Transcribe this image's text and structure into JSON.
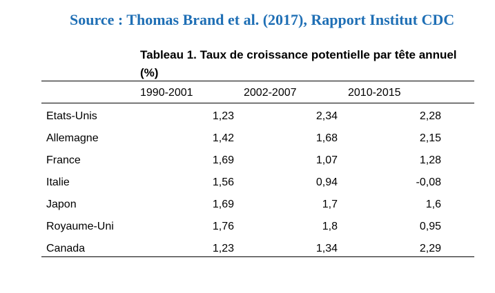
{
  "source": "Source : Thomas Brand et al. (2017), Rapport Institut CDC",
  "table": {
    "title": "Tableau 1. Taux de croissance potentielle par tête annuel (%)",
    "columns": [
      "1990-2001",
      "2002-2007",
      "2010-2015"
    ],
    "rows": [
      {
        "country": "Etats-Unis",
        "values": [
          "1,23",
          "2,34",
          "2,28"
        ]
      },
      {
        "country": "Allemagne",
        "values": [
          "1,42",
          "1,68",
          "2,15"
        ]
      },
      {
        "country": "France",
        "values": [
          "1,69",
          "1,07",
          "1,28"
        ]
      },
      {
        "country": "Italie",
        "values": [
          "1,56",
          "0,94",
          "-0,08"
        ]
      },
      {
        "country": "Japon",
        "values": [
          "1,69",
          "1,7",
          "1,6"
        ]
      },
      {
        "country": "Royaume-Uni",
        "values": [
          "1,76",
          "1,8",
          "0,95"
        ]
      },
      {
        "country": "Canada",
        "values": [
          "1,23",
          "1,34",
          "2,29"
        ]
      }
    ]
  },
  "colors": {
    "source_text": "#1f6fb5",
    "text": "#000000",
    "rules": "#000000"
  }
}
